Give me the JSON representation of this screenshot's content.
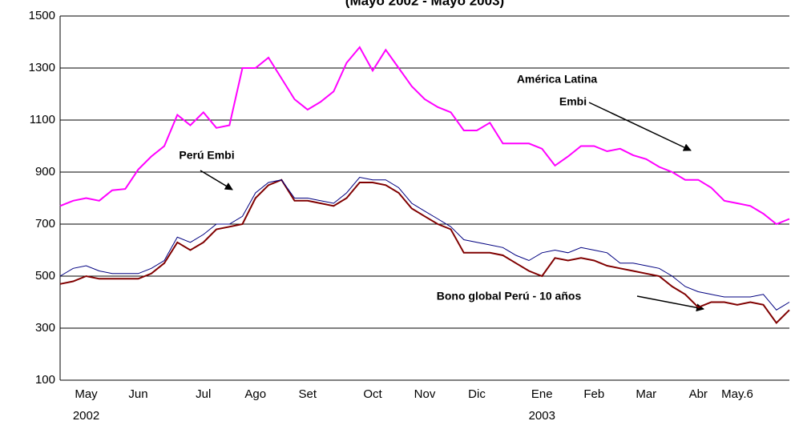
{
  "chart_data": {
    "type": "line",
    "title": "(Mayo 2002 - Mayo 2003)",
    "categories": [
      null,
      null,
      "May",
      null,
      null,
      null,
      "Jun",
      null,
      null,
      null,
      null,
      "Jul",
      null,
      null,
      null,
      "Ago",
      null,
      null,
      null,
      "Set",
      null,
      null,
      null,
      null,
      "Oct",
      null,
      null,
      null,
      "Nov",
      null,
      null,
      null,
      "Dic",
      null,
      null,
      null,
      null,
      "Ene",
      null,
      null,
      null,
      "Feb",
      null,
      null,
      null,
      "Mar",
      null,
      null,
      null,
      "Abr",
      null,
      null,
      "May.6",
      null,
      null,
      null,
      null
    ],
    "sublabels": [
      null,
      null,
      "2002",
      null,
      null,
      null,
      null,
      null,
      null,
      null,
      null,
      null,
      null,
      null,
      null,
      null,
      null,
      null,
      null,
      null,
      null,
      null,
      null,
      null,
      null,
      null,
      null,
      null,
      null,
      null,
      null,
      null,
      null,
      null,
      null,
      null,
      null,
      "2003",
      null,
      null,
      null,
      null,
      null,
      null,
      null,
      null,
      null,
      null,
      null,
      null,
      null,
      null,
      null,
      null,
      null,
      null,
      null
    ],
    "series": [
      {
        "name": "América Latina Embi",
        "color": "#ff00ff",
        "values": [
          770,
          790,
          800,
          790,
          830,
          835,
          910,
          960,
          1000,
          1120,
          1080,
          1130,
          1070,
          1080,
          1300,
          1300,
          1340,
          1260,
          1180,
          1140,
          1170,
          1210,
          1320,
          1380,
          1290,
          1370,
          1300,
          1230,
          1180,
          1150,
          1130,
          1060,
          1060,
          1090,
          1010,
          1010,
          1010,
          990,
          925,
          960,
          1000,
          1000,
          980,
          990,
          965,
          950,
          920,
          900,
          870,
          870,
          840,
          790,
          780,
          770,
          740,
          700,
          720
        ]
      },
      {
        "name": "Perú Embi",
        "color": "#000080",
        "values": [
          500,
          530,
          540,
          520,
          510,
          510,
          510,
          530,
          560,
          650,
          630,
          660,
          700,
          700,
          730,
          820,
          860,
          870,
          800,
          800,
          790,
          780,
          820,
          880,
          870,
          870,
          840,
          780,
          750,
          720,
          690,
          640,
          630,
          620,
          610,
          580,
          560,
          590,
          600,
          590,
          610,
          600,
          590,
          550,
          550,
          540,
          530,
          500,
          460,
          440,
          430,
          420,
          420,
          420,
          430,
          370,
          400
        ]
      },
      {
        "name": "Bono global Perú  - 10 años",
        "color": "#800000",
        "values": [
          470,
          480,
          500,
          490,
          490,
          490,
          490,
          510,
          550,
          630,
          600,
          630,
          680,
          690,
          700,
          800,
          850,
          870,
          790,
          790,
          780,
          770,
          800,
          860,
          860,
          850,
          820,
          760,
          730,
          700,
          680,
          590,
          590,
          590,
          580,
          550,
          520,
          500,
          570,
          560,
          570,
          560,
          540,
          530,
          520,
          510,
          500,
          460,
          430,
          380,
          400,
          400,
          390,
          400,
          390,
          320,
          370
        ]
      }
    ],
    "annotations": [
      "América Latina",
      "Embi",
      "Perú  Embi"
    ],
    "ylim": [
      100,
      1500
    ],
    "yticks": [
      100,
      300,
      500,
      700,
      900,
      1100,
      1300,
      1500
    ],
    "grid": true
  }
}
